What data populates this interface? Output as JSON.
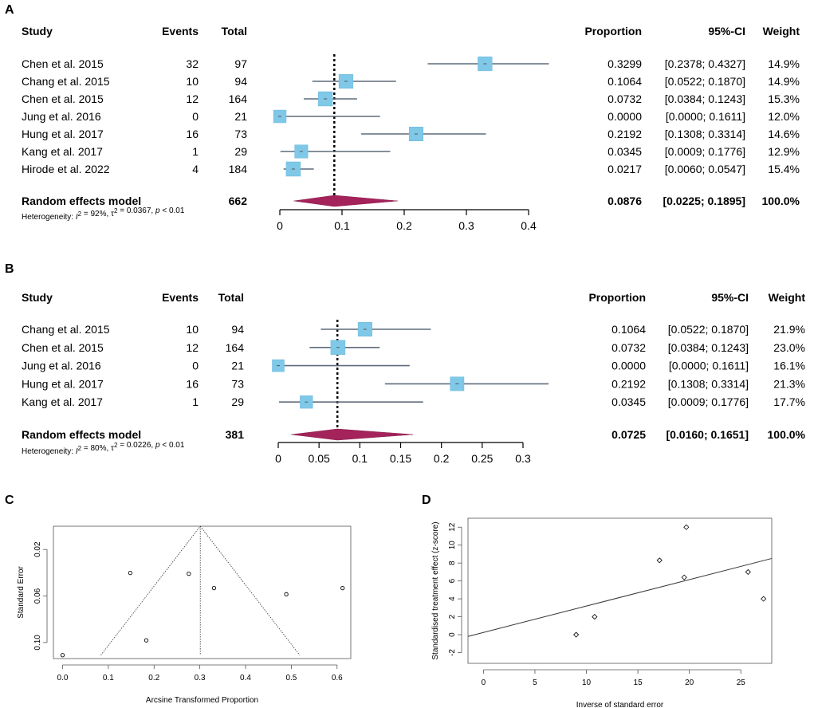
{
  "chart_data": [
    {
      "panel": "A",
      "type": "forest",
      "headers": {
        "study": "Study",
        "events": "Events",
        "total": "Total",
        "proportion": "Proportion",
        "ci": "95%-CI",
        "weight": "Weight"
      },
      "studies": [
        {
          "label": "Chen et al. 2015",
          "events": "32",
          "total": "97",
          "prop": 0.3299,
          "lo": 0.2378,
          "hi": 0.4327,
          "prop_text": "0.3299",
          "ci_text": "[0.2378; 0.4327]",
          "weight": "14.9%"
        },
        {
          "label": "Chang et al.  2015",
          "events": "10",
          "total": "94",
          "prop": 0.1064,
          "lo": 0.0522,
          "hi": 0.187,
          "prop_text": "0.1064",
          "ci_text": "[0.0522; 0.1870]",
          "weight": "14.9%"
        },
        {
          "label": "Chen et al. 2015",
          "events": "12",
          "total": "164",
          "prop": 0.0732,
          "lo": 0.0384,
          "hi": 0.1243,
          "prop_text": "0.0732",
          "ci_text": "[0.0384; 0.1243]",
          "weight": "15.3%"
        },
        {
          "label": "Jung et al. 2016",
          "events": "0",
          "total": "21",
          "prop": 0.0,
          "lo": 0.0,
          "hi": 0.1611,
          "prop_text": "0.0000",
          "ci_text": "[0.0000; 0.1611]",
          "weight": "12.0%"
        },
        {
          "label": "Hung et al.  2017",
          "events": "16",
          "total": "73",
          "prop": 0.2192,
          "lo": 0.1308,
          "hi": 0.3314,
          "prop_text": "0.2192",
          "ci_text": "[0.1308; 0.3314]",
          "weight": "14.6%"
        },
        {
          "label": "Kang et al. 2017",
          "events": "1",
          "total": "29",
          "prop": 0.0345,
          "lo": 0.0009,
          "hi": 0.1776,
          "prop_text": "0.0345",
          "ci_text": "[0.0009; 0.1776]",
          "weight": "12.9%"
        },
        {
          "label": "Hirode et al.  2022",
          "events": "4",
          "total": "184",
          "prop": 0.0217,
          "lo": 0.006,
          "hi": 0.0547,
          "prop_text": "0.0217",
          "ci_text": "[0.0060; 0.0547]",
          "weight": "15.4%"
        }
      ],
      "summary": {
        "label": "Random effects model",
        "total": "662",
        "prop": 0.0876,
        "lo": 0.0225,
        "hi": 0.1895,
        "prop_text": "0.0876",
        "ci_text": "[0.0225; 0.1895]",
        "weight": "100.0%"
      },
      "heterogeneity": {
        "prefix": "Heterogeneity: ",
        "i2_symbol": "I",
        "i2_rest": " = 92%, ",
        "tau_symbol": "τ",
        "tau_rest": " = 0.0367, ",
        "p_symbol": "p",
        "p_rest": " < 0.01"
      },
      "xticks": [
        0,
        0.1,
        0.2,
        0.3,
        0.4
      ],
      "xtick_labels": [
        "0",
        "0.1",
        "0.2",
        "0.3",
        "0.4"
      ],
      "xlim": [
        0,
        0.4
      ]
    },
    {
      "panel": "B",
      "type": "forest",
      "headers": {
        "study": "Study",
        "events": "Events",
        "total": "Total",
        "proportion": "Proportion",
        "ci": "95%-CI",
        "weight": "Weight"
      },
      "studies": [
        {
          "label": "Chang et al.  2015",
          "events": "10",
          "total": "94",
          "prop": 0.1064,
          "lo": 0.0522,
          "hi": 0.187,
          "prop_text": "0.1064",
          "ci_text": "[0.0522; 0.1870]",
          "weight": "21.9%"
        },
        {
          "label": "Chen et al. 2015",
          "events": "12",
          "total": "164",
          "prop": 0.0732,
          "lo": 0.0384,
          "hi": 0.1243,
          "prop_text": "0.0732",
          "ci_text": "[0.0384; 0.1243]",
          "weight": "23.0%"
        },
        {
          "label": "Jung et al. 2016",
          "events": "0",
          "total": "21",
          "prop": 0.0,
          "lo": 0.0,
          "hi": 0.1611,
          "prop_text": "0.0000",
          "ci_text": "[0.0000; 0.1611]",
          "weight": "16.1%"
        },
        {
          "label": "Hung et al.  2017",
          "events": "16",
          "total": "73",
          "prop": 0.2192,
          "lo": 0.1308,
          "hi": 0.3314,
          "prop_text": "0.2192",
          "ci_text": "[0.1308; 0.3314]",
          "weight": "21.3%"
        },
        {
          "label": "Kang et al. 2017",
          "events": "1",
          "total": "29",
          "prop": 0.0345,
          "lo": 0.0009,
          "hi": 0.1776,
          "prop_text": "0.0345",
          "ci_text": "[0.0009; 0.1776]",
          "weight": "17.7%"
        }
      ],
      "summary": {
        "label": "Random effects model",
        "total": "381",
        "prop": 0.0725,
        "lo": 0.016,
        "hi": 0.1651,
        "prop_text": "0.0725",
        "ci_text": "[0.0160; 0.1651]",
        "weight": "100.0%"
      },
      "heterogeneity": {
        "prefix": "Heterogeneity: ",
        "i2_symbol": "I",
        "i2_rest": " = 80%, ",
        "tau_symbol": "τ",
        "tau_rest": " = 0.0226, ",
        "p_symbol": "p",
        "p_rest": " < 0.01"
      },
      "xticks": [
        0,
        0.05,
        0.1,
        0.15,
        0.2,
        0.25,
        0.3
      ],
      "xtick_labels": [
        "0",
        "0.05",
        "0.1",
        "0.15",
        "0.2",
        "0.25",
        "0.3"
      ],
      "xlim": [
        0,
        0.3
      ]
    },
    {
      "panel": "C",
      "type": "scatter",
      "subtype": "funnel",
      "xlabel": "Arcsine Transformed Proportion",
      "ylabel": "Standard Error",
      "xlim": [
        -0.02,
        0.63
      ],
      "ylim": [
        0.1138,
        0.0
      ],
      "xticks": [
        0.0,
        0.1,
        0.2,
        0.3,
        0.4,
        0.5,
        0.6
      ],
      "xtick_labels": [
        "0.0",
        "0.1",
        "0.2",
        "0.3",
        "0.4",
        "0.5",
        "0.6"
      ],
      "yticks": [
        0.02,
        0.06,
        0.1
      ],
      "ytick_labels": [
        "0.02",
        "0.06",
        "0.10"
      ],
      "points": [
        {
          "x": 0.0,
          "y": 0.1109
        },
        {
          "x": 0.148,
          "y": 0.0402
        },
        {
          "x": 0.183,
          "y": 0.0981
        },
        {
          "x": 0.276,
          "y": 0.0409
        },
        {
          "x": 0.331,
          "y": 0.0532
        },
        {
          "x": 0.489,
          "y": 0.0585
        },
        {
          "x": 0.612,
          "y": 0.0532
        }
      ],
      "pooled": 0.301,
      "funnel_base_se": 0.1109
    },
    {
      "panel": "D",
      "type": "scatter",
      "subtype": "galbraith",
      "xlabel": "Inverse of standard error",
      "ylabel": "Standardised treatment effect (z-score)",
      "xlim": [
        -1.5,
        28
      ],
      "ylim": [
        -3.2,
        13.0
      ],
      "xticks": [
        0,
        5,
        10,
        15,
        20,
        25
      ],
      "xtick_labels": [
        "0",
        "5",
        "10",
        "15",
        "20",
        "25"
      ],
      "yticks": [
        -2,
        0,
        2,
        4,
        6,
        8,
        10,
        12
      ],
      "ytick_labels": [
        "-2",
        "0",
        "2",
        "4",
        "6",
        "8",
        "10",
        "12"
      ],
      "points": [
        {
          "x": 9.0,
          "y": 0.0
        },
        {
          "x": 10.8,
          "y": 2.0
        },
        {
          "x": 17.1,
          "y": 8.3
        },
        {
          "x": 19.5,
          "y": 6.4
        },
        {
          "x": 19.7,
          "y": 12.0
        },
        {
          "x": 25.7,
          "y": 7.0
        },
        {
          "x": 27.2,
          "y": 4.0
        }
      ],
      "regression": {
        "intercept": 0.25,
        "slope": 0.295
      }
    }
  ]
}
